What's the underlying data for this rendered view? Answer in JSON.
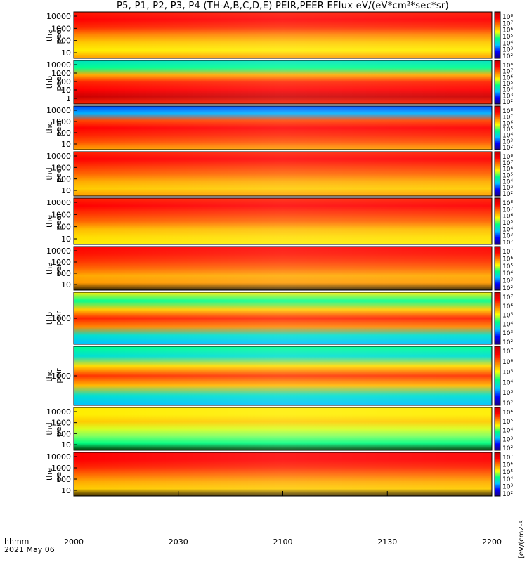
{
  "title": "P5, P1, P2, P3, P4 (TH-A,B,C,D,E) PEIR,PEER EFlux eV/(eV*cm²*sec*sr)",
  "colorbar_title": "[eV/(cm2-s",
  "footer": {
    "line1": "hhmm",
    "line2": "2021 May 06"
  },
  "chart_data": {
    "type": "heatmap",
    "x_axis": {
      "tick_labels": [
        "2000",
        "2030",
        "2100",
        "2130",
        "2200"
      ]
    },
    "color_scale": {
      "colors": [
        "#1a0080",
        "#0000ff",
        "#00c8ff",
        "#00ff80",
        "#ffff00",
        "#ff8000",
        "#ff0000",
        "#c00000"
      ]
    },
    "panels": [
      {
        "label1": "tha",
        "label2": "peer",
        "yticks": [
          "10000",
          "1000",
          "100",
          "10"
        ],
        "cbar_ticks": [
          "10⁸",
          "10⁷",
          "10⁶",
          "10⁵",
          "10⁴",
          "10³",
          "10²"
        ]
      },
      {
        "label1": "thb",
        "label2": "peer",
        "yticks": [
          "10000",
          "1000",
          "100",
          "10",
          "1"
        ],
        "cbar_ticks": [
          "10⁸",
          "10⁷",
          "10⁶",
          "10⁵",
          "10⁴",
          "10³",
          "10²"
        ]
      },
      {
        "label1": "thc",
        "label2": "peer",
        "yticks": [
          "10000",
          "1000",
          "100",
          "10"
        ],
        "cbar_ticks": [
          "10⁸",
          "10⁷",
          "10⁶",
          "10⁵",
          "10⁴",
          "10³",
          "10²"
        ]
      },
      {
        "label1": "thd",
        "label2": "peer",
        "yticks": [
          "10000",
          "1000",
          "100",
          "10"
        ],
        "cbar_ticks": [
          "10⁸",
          "10⁷",
          "10⁶",
          "10⁵",
          "10⁴",
          "10³",
          "10²"
        ]
      },
      {
        "label1": "the",
        "label2": "peer",
        "yticks": [
          "10000",
          "1000",
          "100",
          "10"
        ],
        "cbar_ticks": [
          "10⁸",
          "10⁷",
          "10⁶",
          "10⁵",
          "10⁴",
          "10³",
          "10²"
        ]
      },
      {
        "label1": "tha",
        "label2": "peir",
        "yticks": [
          "10000",
          "1000",
          "100",
          "10"
        ],
        "cbar_ticks": [
          "10⁷",
          "10⁶",
          "10⁵",
          "10⁴",
          "10³",
          "10²"
        ]
      },
      {
        "label1": "thb",
        "label2": "peir",
        "yticks": [
          "1000"
        ],
        "cbar_ticks": [
          "10⁷",
          "10⁶",
          "10⁵",
          "10⁴",
          "10³",
          "10²"
        ]
      },
      {
        "label1": "thc",
        "label2": "peir",
        "yticks": [
          "1000"
        ],
        "cbar_ticks": [
          "10⁷",
          "10⁶",
          "10⁵",
          "10⁴",
          "10³",
          "10²"
        ]
      },
      {
        "label1": "thd",
        "label2": "peir",
        "yticks": [
          "10000",
          "1000",
          "100",
          "10"
        ],
        "cbar_ticks": [
          "10⁶",
          "10⁵",
          "10⁴",
          "10³",
          "10²"
        ]
      },
      {
        "label1": "the",
        "label2": "peir",
        "yticks": [
          "10000",
          "1000",
          "100",
          "10"
        ],
        "cbar_ticks": [
          "10⁷",
          "10⁶",
          "10⁵",
          "10⁴",
          "10³",
          "10²"
        ]
      }
    ]
  }
}
